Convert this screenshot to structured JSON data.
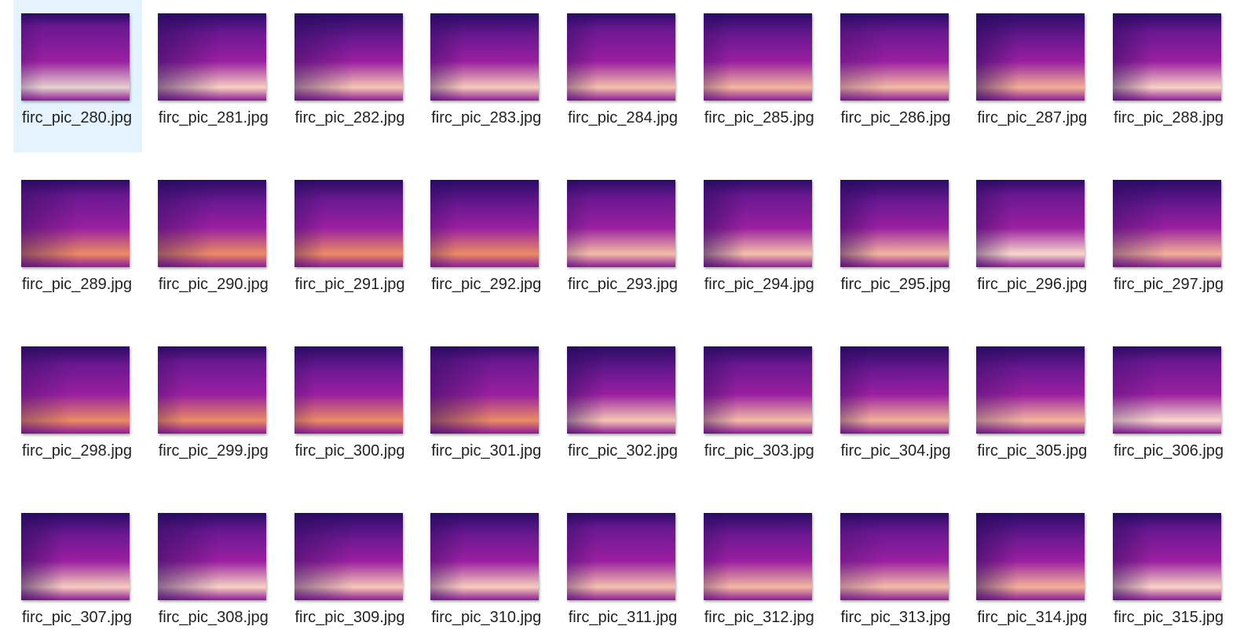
{
  "files": [
    "firc_pic_280.jpg",
    "firc_pic_281.jpg",
    "firc_pic_282.jpg",
    "firc_pic_283.jpg",
    "firc_pic_284.jpg",
    "firc_pic_285.jpg",
    "firc_pic_286.jpg",
    "firc_pic_287.jpg",
    "firc_pic_288.jpg",
    "firc_pic_289.jpg",
    "firc_pic_290.jpg",
    "firc_pic_291.jpg",
    "firc_pic_292.jpg",
    "firc_pic_293.jpg",
    "firc_pic_294.jpg",
    "firc_pic_295.jpg",
    "firc_pic_296.jpg",
    "firc_pic_297.jpg",
    "firc_pic_298.jpg",
    "firc_pic_299.jpg",
    "firc_pic_300.jpg",
    "firc_pic_301.jpg",
    "firc_pic_302.jpg",
    "firc_pic_303.jpg",
    "firc_pic_304.jpg",
    "firc_pic_305.jpg",
    "firc_pic_306.jpg",
    "firc_pic_307.jpg",
    "firc_pic_308.jpg",
    "firc_pic_309.jpg",
    "firc_pic_310.jpg",
    "firc_pic_311.jpg",
    "firc_pic_312.jpg",
    "firc_pic_313.jpg",
    "firc_pic_314.jpg",
    "firc_pic_315.jpg"
  ],
  "selected": 0
}
